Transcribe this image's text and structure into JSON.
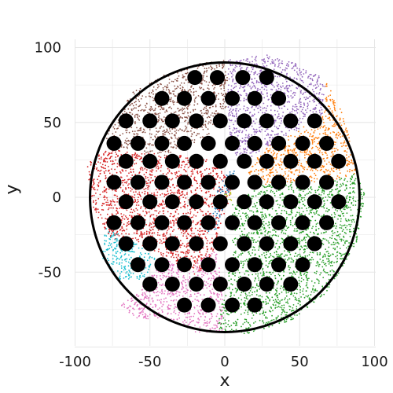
{
  "chart_data": {
    "type": "scatter",
    "title": "",
    "xlabel": "x",
    "ylabel": "y",
    "xlim": [
      -100,
      100
    ],
    "ylim": [
      -100,
      100
    ],
    "xticks": [
      -100,
      -50,
      0,
      50,
      100
    ],
    "yticks": [
      -50,
      0,
      50,
      100
    ],
    "xtick_labels": [
      "-100",
      "-50",
      "0",
      "50",
      "100"
    ],
    "ytick_labels": [
      "-50",
      "0",
      "50",
      "100"
    ],
    "grid": true,
    "circle": {
      "center": [
        0,
        0
      ],
      "radius": 90,
      "color": "#000000"
    },
    "series": [
      {
        "color": "#8c564b",
        "polygon": [
          [
            -80,
            40
          ],
          [
            -62,
            70
          ],
          [
            -40,
            82
          ],
          [
            -15,
            90
          ],
          [
            2,
            92
          ],
          [
            2,
            62
          ],
          [
            -12,
            40
          ],
          [
            -40,
            28
          ],
          [
            -70,
            32
          ]
        ]
      },
      {
        "color": "#9467bd",
        "polygon": [
          [
            2,
            92
          ],
          [
            28,
            95
          ],
          [
            52,
            88
          ],
          [
            68,
            78
          ],
          [
            65,
            55
          ],
          [
            45,
            42
          ],
          [
            25,
            32
          ],
          [
            12,
            20
          ],
          [
            4,
            35
          ],
          [
            2,
            62
          ]
        ]
      },
      {
        "color": "#ff7f0e",
        "polygon": [
          [
            68,
            78
          ],
          [
            78,
            58
          ],
          [
            84,
            38
          ],
          [
            88,
            16
          ],
          [
            70,
            10
          ],
          [
            45,
            10
          ],
          [
            25,
            8
          ],
          [
            15,
            15
          ],
          [
            25,
            32
          ],
          [
            45,
            42
          ],
          [
            65,
            55
          ]
        ]
      },
      {
        "color": "#2ca02c",
        "polygon": [
          [
            88,
            16
          ],
          [
            94,
            0
          ],
          [
            88,
            -30
          ],
          [
            70,
            -62
          ],
          [
            45,
            -82
          ],
          [
            15,
            -92
          ],
          [
            -5,
            -88
          ],
          [
            0,
            -60
          ],
          [
            5,
            -30
          ],
          [
            5,
            -5
          ],
          [
            25,
            8
          ],
          [
            45,
            10
          ],
          [
            70,
            10
          ]
        ]
      },
      {
        "color": "#d62728",
        "polygon": [
          [
            -80,
            32
          ],
          [
            -92,
            22
          ],
          [
            -90,
            0
          ],
          [
            -84,
            -18
          ],
          [
            -75,
            -28
          ],
          [
            -60,
            -30
          ],
          [
            -40,
            -40
          ],
          [
            -20,
            -52
          ],
          [
            -10,
            -45
          ],
          [
            -5,
            -25
          ],
          [
            2,
            -5
          ],
          [
            5,
            10
          ],
          [
            -10,
            25
          ],
          [
            -30,
            28
          ],
          [
            -60,
            30
          ]
        ]
      },
      {
        "color": "#e377c2",
        "polygon": [
          [
            -40,
            -40
          ],
          [
            -55,
            -60
          ],
          [
            -70,
            -72
          ],
          [
            -58,
            -82
          ],
          [
            -40,
            -80
          ],
          [
            -20,
            -90
          ],
          [
            0,
            -90
          ],
          [
            -2,
            -60
          ],
          [
            -5,
            -35
          ],
          [
            -15,
            -40
          ],
          [
            -25,
            -50
          ]
        ]
      },
      {
        "color": "#17becf",
        "polygon": [
          [
            -80,
            -20
          ],
          [
            -82,
            -40
          ],
          [
            -70,
            -55
          ],
          [
            -55,
            -55
          ],
          [
            -45,
            -42
          ],
          [
            -60,
            -30
          ],
          [
            -70,
            -25
          ]
        ]
      },
      {
        "color": "#1f77b4",
        "polygon": [
          [
            -3,
            10
          ],
          [
            6,
            20
          ],
          [
            8,
            10
          ],
          [
            2,
            2
          ],
          [
            -6,
            -22
          ],
          [
            -12,
            -25
          ],
          [
            -8,
            -5
          ]
        ]
      },
      {
        "color": "#bcbd22",
        "polygon": [
          [
            0,
            2
          ],
          [
            6,
            5
          ],
          [
            5,
            -2
          ],
          [
            0,
            -3
          ]
        ]
      }
    ],
    "centers": [
      [
        -20,
        80
      ],
      [
        -5,
        80
      ],
      [
        12,
        80
      ],
      [
        28,
        80
      ],
      [
        -42,
        66
      ],
      [
        -27,
        66
      ],
      [
        -11,
        66
      ],
      [
        5,
        66
      ],
      [
        20,
        66
      ],
      [
        36,
        66
      ],
      [
        -66,
        51
      ],
      [
        -50,
        51
      ],
      [
        -35,
        51
      ],
      [
        -19,
        51
      ],
      [
        -3,
        51
      ],
      [
        13,
        51
      ],
      [
        28,
        51
      ],
      [
        44,
        51
      ],
      [
        60,
        51
      ],
      [
        -74,
        36
      ],
      [
        -58,
        36
      ],
      [
        -42,
        36
      ],
      [
        -27,
        36
      ],
      [
        -11,
        36
      ],
      [
        5,
        36
      ],
      [
        20,
        36
      ],
      [
        36,
        36
      ],
      [
        52,
        36
      ],
      [
        68,
        36
      ],
      [
        -66,
        24
      ],
      [
        -50,
        24
      ],
      [
        -35,
        24
      ],
      [
        -19,
        24
      ],
      [
        -3,
        24
      ],
      [
        13,
        24
      ],
      [
        28,
        24
      ],
      [
        44,
        24
      ],
      [
        60,
        24
      ],
      [
        76,
        24
      ],
      [
        -74,
        10
      ],
      [
        -58,
        10
      ],
      [
        -42,
        10
      ],
      [
        -27,
        10
      ],
      [
        -11,
        10
      ],
      [
        5,
        10
      ],
      [
        20,
        10
      ],
      [
        36,
        10
      ],
      [
        52,
        10
      ],
      [
        68,
        10
      ],
      [
        -66,
        -3
      ],
      [
        -50,
        -3
      ],
      [
        -35,
        -3
      ],
      [
        -19,
        -3
      ],
      [
        -3,
        -3
      ],
      [
        13,
        -3
      ],
      [
        28,
        -3
      ],
      [
        44,
        -3
      ],
      [
        60,
        -3
      ],
      [
        76,
        -3
      ],
      [
        -74,
        -17
      ],
      [
        -58,
        -17
      ],
      [
        -42,
        -17
      ],
      [
        -27,
        -17
      ],
      [
        -11,
        -17
      ],
      [
        5,
        -17
      ],
      [
        20,
        -17
      ],
      [
        36,
        -17
      ],
      [
        52,
        -17
      ],
      [
        68,
        -17
      ],
      [
        -66,
        -31
      ],
      [
        -50,
        -31
      ],
      [
        -35,
        -31
      ],
      [
        -19,
        -31
      ],
      [
        -3,
        -31
      ],
      [
        13,
        -31
      ],
      [
        28,
        -31
      ],
      [
        44,
        -31
      ],
      [
        60,
        -31
      ],
      [
        -58,
        -45
      ],
      [
        -42,
        -45
      ],
      [
        -27,
        -45
      ],
      [
        -11,
        -45
      ],
      [
        5,
        -45
      ],
      [
        20,
        -45
      ],
      [
        36,
        -45
      ],
      [
        52,
        -45
      ],
      [
        -50,
        -58
      ],
      [
        -35,
        -58
      ],
      [
        -19,
        -58
      ],
      [
        -3,
        -58
      ],
      [
        13,
        -58
      ],
      [
        28,
        -58
      ],
      [
        44,
        -58
      ],
      [
        -27,
        -72
      ],
      [
        -11,
        -72
      ],
      [
        5,
        -72
      ],
      [
        20,
        -72
      ]
    ]
  }
}
